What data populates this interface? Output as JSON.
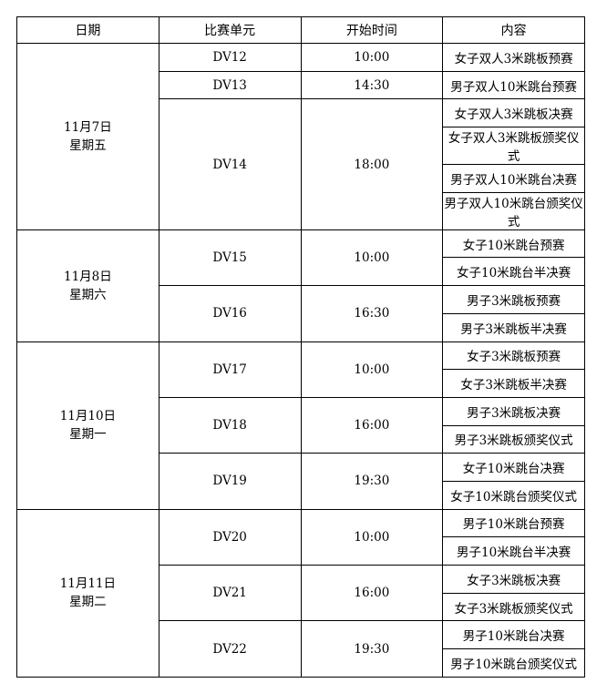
{
  "headers": [
    "日期",
    "比赛单元",
    "开始时间",
    "内容"
  ],
  "schedule": [
    {
      "date": "11月7日",
      "weekday": "星期五",
      "units": [
        {
          "unit": "DV12",
          "time": "10:00",
          "events": [
            "女子双人3米跳板预赛"
          ]
        },
        {
          "unit": "DV13",
          "time": "14:30",
          "events": [
            "男子双人10米跳台预赛"
          ]
        },
        {
          "unit": "DV14",
          "time": "18:00",
          "events": [
            "女子双人3米跳板决赛",
            "女子双人3米跳板颁奖仪式",
            "男子双人10米跳台决赛",
            "男子双人10米跳台颁奖仪式"
          ]
        }
      ]
    },
    {
      "date": "11月8日",
      "weekday": "星期六",
      "units": [
        {
          "unit": "DV15",
          "time": "10:00",
          "events": [
            "女子10米跳台预赛",
            "女子10米跳台半决赛"
          ]
        },
        {
          "unit": "DV16",
          "time": "16:30",
          "events": [
            "男子3米跳板预赛",
            "男子3米跳板半决赛"
          ]
        }
      ]
    },
    {
      "date": "11月10日",
      "weekday": "星期一",
      "units": [
        {
          "unit": "DV17",
          "time": "10:00",
          "events": [
            "女子3米跳板预赛",
            "女子3米跳板半决赛"
          ]
        },
        {
          "unit": "DV18",
          "time": "16:00",
          "events": [
            "男子3米跳板决赛",
            "男子3米跳板颁奖仪式"
          ]
        },
        {
          "unit": "DV19",
          "time": "19:30",
          "events": [
            "女子10米跳台决赛",
            "女子10米跳台颁奖仪式"
          ]
        }
      ]
    },
    {
      "date": "11月11日",
      "weekday": "星期二",
      "units": [
        {
          "unit": "DV20",
          "time": "10:00",
          "events": [
            "男子10米跳台预赛",
            "男子10米跳台半决赛"
          ]
        },
        {
          "unit": "DV21",
          "time": "16:00",
          "events": [
            "女子3米跳板决赛",
            "女子3米跳板颁奖仪式"
          ]
        },
        {
          "unit": "DV22",
          "time": "19:30",
          "events": [
            "男子10米跳台决赛",
            "男子10米跳台颁奖仪式"
          ]
        }
      ]
    }
  ]
}
